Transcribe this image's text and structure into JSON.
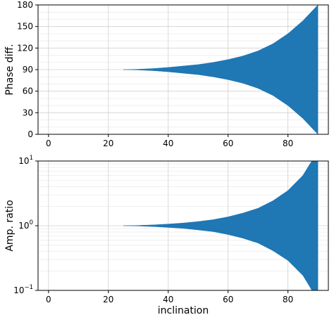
{
  "chart_data": [
    {
      "type": "area",
      "xlabel": "",
      "ylabel": "Phase diff.",
      "xlim": [
        -3.5,
        93.5
      ],
      "ylim": [
        0,
        180
      ],
      "xticks": [
        0,
        20,
        40,
        60,
        80
      ],
      "yticks": [
        0,
        30,
        60,
        90,
        120,
        150,
        180
      ],
      "grid": true,
      "y_minor_gridlines": true,
      "fill_color": "#1f77b4",
      "series": [
        {
          "x": [
            25,
            30,
            35,
            40,
            45,
            50,
            55,
            60,
            65,
            70,
            75,
            80,
            85,
            90
          ],
          "upper": [
            90,
            90.5,
            91.5,
            93,
            95,
            97,
            100,
            104,
            109,
            116,
            126,
            140,
            158,
            180
          ],
          "lower": [
            90,
            89.5,
            88.5,
            87,
            85,
            83,
            80,
            76,
            71,
            64,
            54,
            40,
            22,
            0
          ]
        }
      ]
    },
    {
      "type": "area",
      "xlabel": "inclination",
      "ylabel": "Amp. ratio",
      "xlim": [
        -3.5,
        93.5
      ],
      "ylim": [
        0.1,
        10
      ],
      "yscale": "log",
      "xticks": [
        0,
        20,
        40,
        60,
        80
      ],
      "yticks": [
        {
          "value": 0.1,
          "base": "10",
          "exp": "−1"
        },
        {
          "value": 1,
          "base": "10",
          "exp": "0"
        },
        {
          "value": 10,
          "base": "10",
          "exp": "1"
        }
      ],
      "grid": true,
      "y_minor_gridlines": true,
      "fill_color": "#1f77b4",
      "series": [
        {
          "x": [
            25,
            30,
            35,
            40,
            45,
            50,
            55,
            60,
            65,
            70,
            75,
            80,
            85,
            87,
            88,
            89,
            90
          ],
          "upper": [
            1,
            1.01,
            1.03,
            1.06,
            1.1,
            1.16,
            1.24,
            1.37,
            1.57,
            1.86,
            2.43,
            3.5,
            6.0,
            8.5,
            10,
            10,
            10
          ],
          "lower": [
            1,
            0.99,
            0.97,
            0.94,
            0.91,
            0.86,
            0.81,
            0.73,
            0.64,
            0.54,
            0.41,
            0.29,
            0.17,
            0.12,
            0.1,
            0.1,
            0.1
          ]
        }
      ]
    }
  ]
}
